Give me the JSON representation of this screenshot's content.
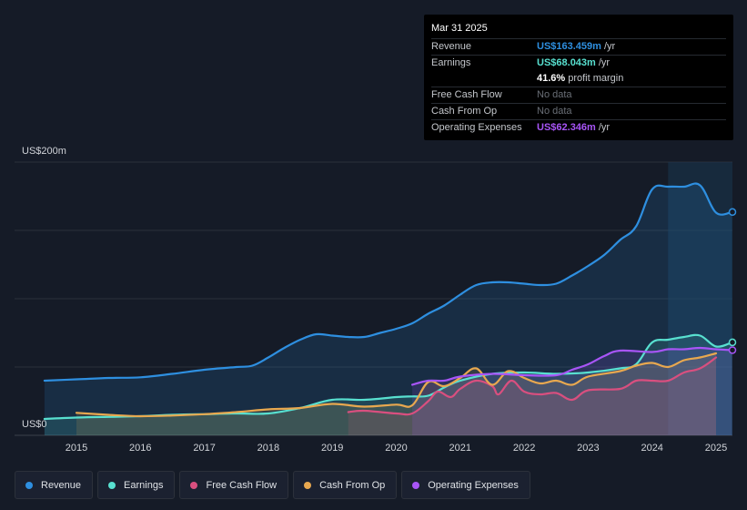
{
  "tooltip": {
    "date": "Mar 31 2025",
    "rows": [
      {
        "label": "Revenue",
        "value": "US$163.459m",
        "unit": "/yr"
      },
      {
        "label": "Earnings",
        "value": "US$68.043m",
        "unit": "/yr"
      },
      {
        "label": "",
        "value": "41.6%",
        "unit": "profit margin"
      },
      {
        "label": "Free Cash Flow",
        "value": "No data"
      },
      {
        "label": "Cash From Op",
        "value": "No data"
      },
      {
        "label": "Operating Expenses",
        "value": "US$62.346m",
        "unit": "/yr"
      }
    ]
  },
  "axis": {
    "y_top_label": "US$200m",
    "y_zero_label": "US$0"
  },
  "legend": [
    {
      "label": "Revenue",
      "color": "#2e8fe0"
    },
    {
      "label": "Earnings",
      "color": "#58e0d0"
    },
    {
      "label": "Free Cash Flow",
      "color": "#d94f7f"
    },
    {
      "label": "Cash From Op",
      "color": "#e8a84f"
    },
    {
      "label": "Operating Expenses",
      "color": "#a855f7"
    }
  ],
  "chart_data": {
    "type": "area",
    "title": "",
    "xlabel": "",
    "ylabel": "US$",
    "xlim": [
      2014.5,
      2025.25
    ],
    "ylim": [
      0,
      200
    ],
    "x_ticks": [
      "2015",
      "2016",
      "2017",
      "2018",
      "2019",
      "2020",
      "2021",
      "2022",
      "2023",
      "2024",
      "2025"
    ],
    "highlight_range": [
      2024.25,
      2025.25
    ],
    "series": [
      {
        "name": "Revenue",
        "color": "#2e8fe0",
        "points": [
          [
            2014.5,
            40
          ],
          [
            2015,
            41
          ],
          [
            2015.5,
            42
          ],
          [
            2016,
            42.5
          ],
          [
            2016.5,
            45
          ],
          [
            2017,
            48
          ],
          [
            2017.5,
            50
          ],
          [
            2017.75,
            51
          ],
          [
            2018,
            57
          ],
          [
            2018.25,
            64
          ],
          [
            2018.5,
            70
          ],
          [
            2018.75,
            74
          ],
          [
            2019,
            73
          ],
          [
            2019.25,
            72
          ],
          [
            2019.5,
            72
          ],
          [
            2019.75,
            75
          ],
          [
            2020,
            78
          ],
          [
            2020.25,
            82
          ],
          [
            2020.5,
            89
          ],
          [
            2020.75,
            95
          ],
          [
            2021,
            103
          ],
          [
            2021.25,
            110
          ],
          [
            2021.5,
            112
          ],
          [
            2021.75,
            112
          ],
          [
            2022,
            111
          ],
          [
            2022.25,
            110
          ],
          [
            2022.5,
            111
          ],
          [
            2022.75,
            117
          ],
          [
            2023,
            124
          ],
          [
            2023.25,
            132
          ],
          [
            2023.5,
            143
          ],
          [
            2023.75,
            153
          ],
          [
            2024,
            180
          ],
          [
            2024.25,
            182
          ],
          [
            2024.5,
            182
          ],
          [
            2024.75,
            183
          ],
          [
            2025,
            163
          ],
          [
            2025.25,
            163.459
          ]
        ]
      },
      {
        "name": "Earnings",
        "color": "#58e0d0",
        "points": [
          [
            2014.5,
            12
          ],
          [
            2015,
            13
          ],
          [
            2015.5,
            13.5
          ],
          [
            2016,
            14
          ],
          [
            2016.5,
            15
          ],
          [
            2017,
            15.5
          ],
          [
            2017.5,
            16
          ],
          [
            2018,
            16
          ],
          [
            2018.5,
            20
          ],
          [
            2019,
            26
          ],
          [
            2019.5,
            26
          ],
          [
            2020,
            28
          ],
          [
            2020.25,
            28.5
          ],
          [
            2020.5,
            29
          ],
          [
            2020.75,
            35
          ],
          [
            2021,
            40
          ],
          [
            2021.5,
            45
          ],
          [
            2022,
            46
          ],
          [
            2022.5,
            45
          ],
          [
            2023,
            46
          ],
          [
            2023.5,
            49
          ],
          [
            2023.75,
            52
          ],
          [
            2024,
            68
          ],
          [
            2024.25,
            70
          ],
          [
            2024.5,
            72
          ],
          [
            2024.75,
            73
          ],
          [
            2025,
            65
          ],
          [
            2025.25,
            68.043
          ]
        ]
      },
      {
        "name": "Free Cash Flow",
        "color": "#d94f7f",
        "points": [
          [
            2019.25,
            17
          ],
          [
            2019.5,
            18
          ],
          [
            2020,
            16
          ],
          [
            2020.25,
            16
          ],
          [
            2020.5,
            25
          ],
          [
            2020.65,
            32
          ],
          [
            2020.85,
            28
          ],
          [
            2021,
            34
          ],
          [
            2021.25,
            40
          ],
          [
            2021.5,
            36
          ],
          [
            2021.6,
            30
          ],
          [
            2021.8,
            40
          ],
          [
            2022,
            32
          ],
          [
            2022.25,
            30
          ],
          [
            2022.5,
            31
          ],
          [
            2022.75,
            26
          ],
          [
            2023,
            33
          ],
          [
            2023.5,
            34
          ],
          [
            2023.75,
            40
          ],
          [
            2024,
            40
          ],
          [
            2024.25,
            40
          ],
          [
            2024.5,
            46
          ],
          [
            2024.75,
            49
          ],
          [
            2025,
            57
          ]
        ]
      },
      {
        "name": "Cash From Op",
        "color": "#e8a84f",
        "points": [
          [
            2015,
            16.5
          ],
          [
            2015.5,
            15
          ],
          [
            2016,
            14
          ],
          [
            2016.5,
            14.5
          ],
          [
            2017,
            15.5
          ],
          [
            2017.5,
            17
          ],
          [
            2018,
            19
          ],
          [
            2018.5,
            20
          ],
          [
            2019,
            23
          ],
          [
            2019.5,
            21
          ],
          [
            2020,
            22.5
          ],
          [
            2020.25,
            22
          ],
          [
            2020.5,
            39
          ],
          [
            2020.75,
            36
          ],
          [
            2021,
            42
          ],
          [
            2021.25,
            49
          ],
          [
            2021.5,
            37
          ],
          [
            2021.75,
            47
          ],
          [
            2022,
            42
          ],
          [
            2022.25,
            38
          ],
          [
            2022.5,
            40
          ],
          [
            2022.75,
            37
          ],
          [
            2023,
            43
          ],
          [
            2023.5,
            47
          ],
          [
            2023.75,
            51
          ],
          [
            2024,
            53
          ],
          [
            2024.25,
            50
          ],
          [
            2024.5,
            55
          ],
          [
            2024.75,
            57
          ],
          [
            2025,
            60
          ]
        ]
      },
      {
        "name": "Operating Expenses",
        "color": "#a855f7",
        "points": [
          [
            2020.25,
            37
          ],
          [
            2020.5,
            40
          ],
          [
            2020.75,
            40
          ],
          [
            2021,
            43
          ],
          [
            2021.5,
            45
          ],
          [
            2022,
            44
          ],
          [
            2022.5,
            44
          ],
          [
            2022.75,
            48
          ],
          [
            2023,
            52
          ],
          [
            2023.25,
            58
          ],
          [
            2023.5,
            62
          ],
          [
            2024,
            61
          ],
          [
            2024.25,
            63
          ],
          [
            2024.5,
            63
          ],
          [
            2024.75,
            64
          ],
          [
            2025,
            63
          ],
          [
            2025.25,
            62.346
          ]
        ]
      }
    ]
  }
}
